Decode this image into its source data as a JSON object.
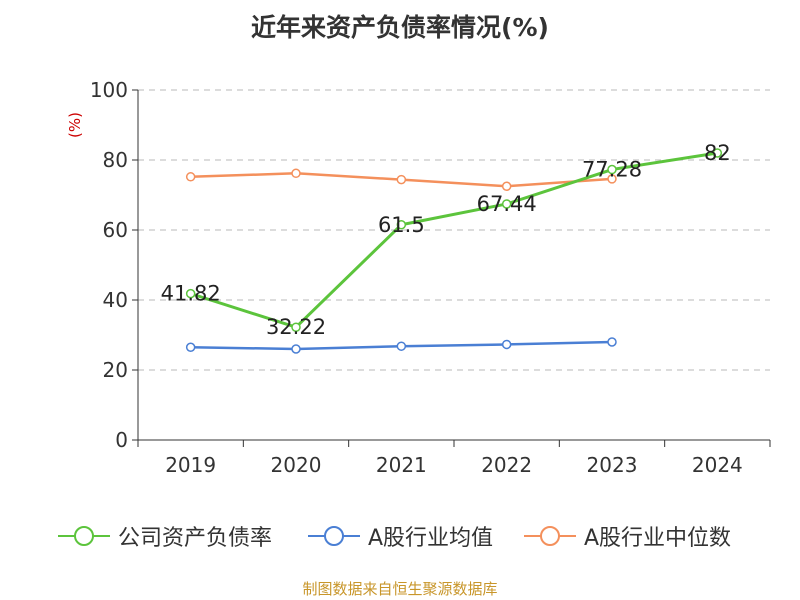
{
  "title": "近年来资产负债率情况(%)",
  "source": "制图数据来自恒生聚源数据库",
  "colors": {
    "company": "#5cc43c",
    "industry_avg": "#4a7fd4",
    "industry_median": "#f4905c",
    "ylabel": "#cc0000"
  },
  "chart_data": {
    "type": "line",
    "title": "近年来资产负债率情况(%)",
    "ylabel": "(%)",
    "xlabel": "",
    "ylim": [
      0,
      100
    ],
    "yticks": [
      0,
      20,
      40,
      60,
      80,
      100
    ],
    "grid": true,
    "legend_position": "bottom",
    "categories": [
      "2019",
      "2020",
      "2021",
      "2022",
      "2023",
      "2024"
    ],
    "series": [
      {
        "name": "公司资产负债率",
        "values": [
          41.82,
          32.22,
          61.5,
          67.44,
          77.28,
          82
        ],
        "labels": [
          "41.82",
          "32.22",
          "61.5",
          "67.44",
          "77.28",
          "82"
        ]
      },
      {
        "name": "A股行业均值",
        "values": [
          26.5,
          26.0,
          26.8,
          27.3,
          28.0,
          null
        ]
      },
      {
        "name": "A股行业中位数",
        "values": [
          75.2,
          76.2,
          74.4,
          72.5,
          74.6,
          null
        ]
      }
    ]
  }
}
